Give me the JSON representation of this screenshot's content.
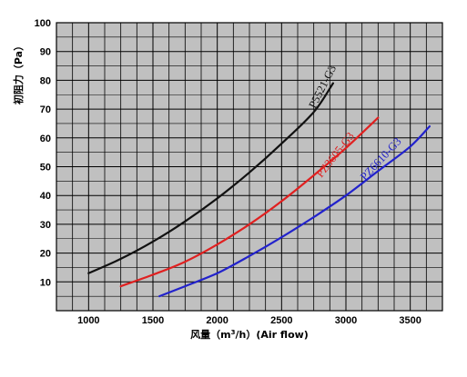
{
  "chart_data": {
    "type": "line",
    "title": "",
    "xlabel_parts": [
      "风量（m",
      "3",
      "/h）(Air flow)"
    ],
    "ylabel": "初阻力（Pa）",
    "xlim": [
      750,
      3750
    ],
    "ylim": [
      0,
      100
    ],
    "x_ticks": [
      1000,
      1500,
      2000,
      2500,
      3000,
      3500
    ],
    "y_ticks": [
      10,
      20,
      30,
      40,
      50,
      60,
      70,
      80,
      90,
      100
    ],
    "grid": true,
    "series": [
      {
        "name": "P5521-G3",
        "color": "#111111",
        "points": [
          [
            1000,
            13
          ],
          [
            1250,
            18
          ],
          [
            1500,
            24
          ],
          [
            1750,
            31
          ],
          [
            2000,
            39
          ],
          [
            2250,
            48
          ],
          [
            2500,
            58
          ],
          [
            2750,
            69
          ],
          [
            2900,
            79
          ]
        ],
        "label_at": [
          2760,
          70
        ],
        "label_angle": -63
      },
      {
        "name": "PZ3605-G3",
        "color": "#e02020",
        "points": [
          [
            1250,
            8.5
          ],
          [
            1500,
            12.5
          ],
          [
            1750,
            17
          ],
          [
            2000,
            23
          ],
          [
            2250,
            30
          ],
          [
            2500,
            38
          ],
          [
            2750,
            47
          ],
          [
            3000,
            56.5
          ],
          [
            3250,
            67
          ]
        ],
        "label_at": [
          2810,
          46
        ],
        "label_angle": -52
      },
      {
        "name": "PZ6610-G3",
        "color": "#2222cc",
        "points": [
          [
            1550,
            5
          ],
          [
            1750,
            8.5
          ],
          [
            2000,
            13
          ],
          [
            2250,
            19
          ],
          [
            2500,
            25.5
          ],
          [
            2750,
            32.5
          ],
          [
            3000,
            40
          ],
          [
            3250,
            48.5
          ],
          [
            3500,
            57
          ],
          [
            3650,
            64
          ]
        ],
        "label_at": [
          3150,
          45
        ],
        "label_angle": -47
      }
    ]
  }
}
